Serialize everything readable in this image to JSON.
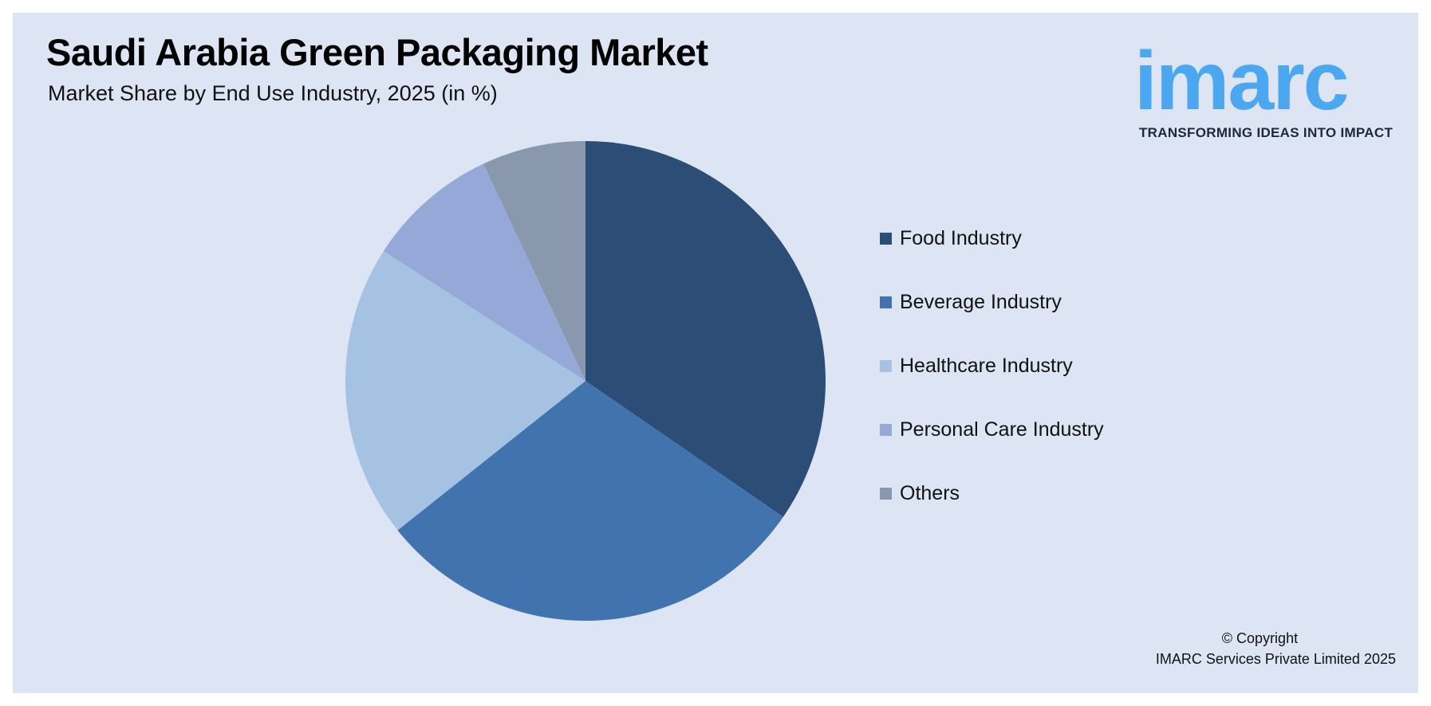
{
  "header": {
    "title": "Saudi Arabia Green Packaging Market",
    "subtitle": "Market Share by End Use Industry, 2025 (in %)"
  },
  "logo": {
    "word": "imarc",
    "tagline": "TRANSFORMING IDEAS INTO IMPACT"
  },
  "footer": {
    "copyright_line1": "© Copyright",
    "copyright_line2": "IMARC Services Private Limited 2025"
  },
  "chart_data": {
    "type": "pie",
    "title": "Saudi Arabia Green Packaging Market",
    "subtitle": "Market Share by End Use Industry, 2025 (in %)",
    "categories": [
      "Food Industry",
      "Beverage Industry",
      "Healthcare Industry",
      "Personal Care Industry",
      "Others"
    ],
    "values": [
      34.6,
      29.7,
      19.8,
      8.9,
      7.0
    ],
    "colors": [
      "#2c4d75",
      "#4174af",
      "#a6c2e2",
      "#95a8d8",
      "#8a98ae"
    ],
    "start_angle": "12 o'clock",
    "direction": "clockwise",
    "legend_position": "right"
  }
}
